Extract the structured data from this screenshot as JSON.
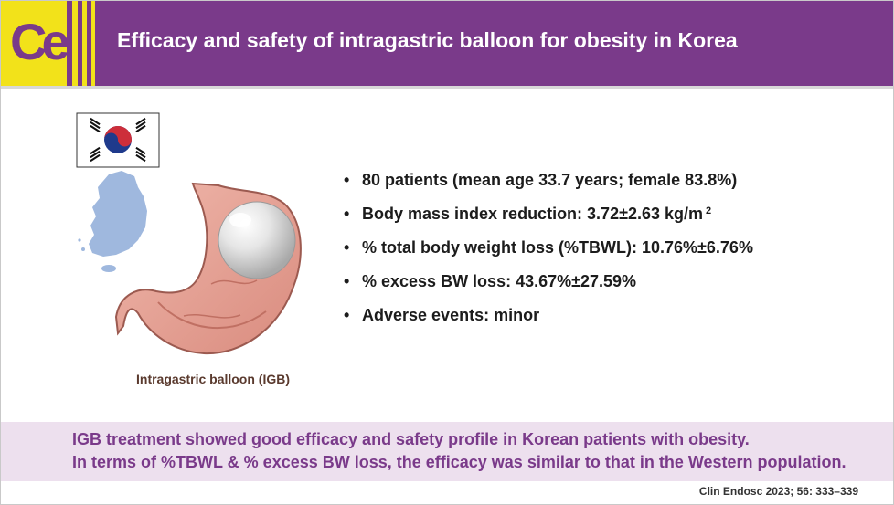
{
  "header": {
    "logo_text": "Ce",
    "title": "Efficacy and safety of intragastric balloon for obesity in Korea"
  },
  "illustration": {
    "caption": "Intragastric balloon (IGB)"
  },
  "findings": [
    {
      "text": "80 patients (mean age 33.7 years;  female 83.8%)"
    },
    {
      "text": "Body mass index reduction: 3.72±2.63 kg/m",
      "sup": "2"
    },
    {
      "text": "% total body weight loss (%TBWL): 10.76%±6.76%"
    },
    {
      "text": "% excess BW loss: 43.67%±27.59%"
    },
    {
      "text": "Adverse events: minor"
    }
  ],
  "conclusion": {
    "line1": "IGB treatment showed good efficacy and safety profile in Korean patients with obesity.",
    "line2": "In terms of %TBWL & % excess BW loss, the efficacy was similar to that in the Western population."
  },
  "citation": "Clin Endosc 2023; 56: 333–339",
  "colors": {
    "brand_purple": "#7a3a8a",
    "logo_yellow": "#f2e21a",
    "summary_background": "#ede0ee"
  }
}
